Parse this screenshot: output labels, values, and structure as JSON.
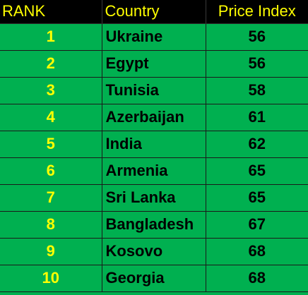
{
  "colors": {
    "header_background": "#000000",
    "header_text": "#ffff00",
    "row_background": "#00b050",
    "rank_text": "#ffff00",
    "cell_text": "#000000"
  },
  "table": {
    "headers": {
      "rank": "RANK",
      "country": "Country",
      "price_index": "Price Index"
    },
    "rows": [
      {
        "rank": "1",
        "country": "Ukraine",
        "price_index": "56"
      },
      {
        "rank": "2",
        "country": "Egypt",
        "price_index": "56"
      },
      {
        "rank": "3",
        "country": "Tunisia",
        "price_index": "58"
      },
      {
        "rank": "4",
        "country": "Azerbaijan",
        "price_index": "61"
      },
      {
        "rank": "5",
        "country": "India",
        "price_index": "62"
      },
      {
        "rank": "6",
        "country": "Armenia",
        "price_index": "65"
      },
      {
        "rank": "7",
        "country": "Sri Lanka",
        "price_index": "65"
      },
      {
        "rank": "8",
        "country": "Bangladesh",
        "price_index": "67"
      },
      {
        "rank": "9",
        "country": "Kosovo",
        "price_index": "68"
      },
      {
        "rank": "10",
        "country": "Georgia",
        "price_index": "68"
      }
    ]
  }
}
